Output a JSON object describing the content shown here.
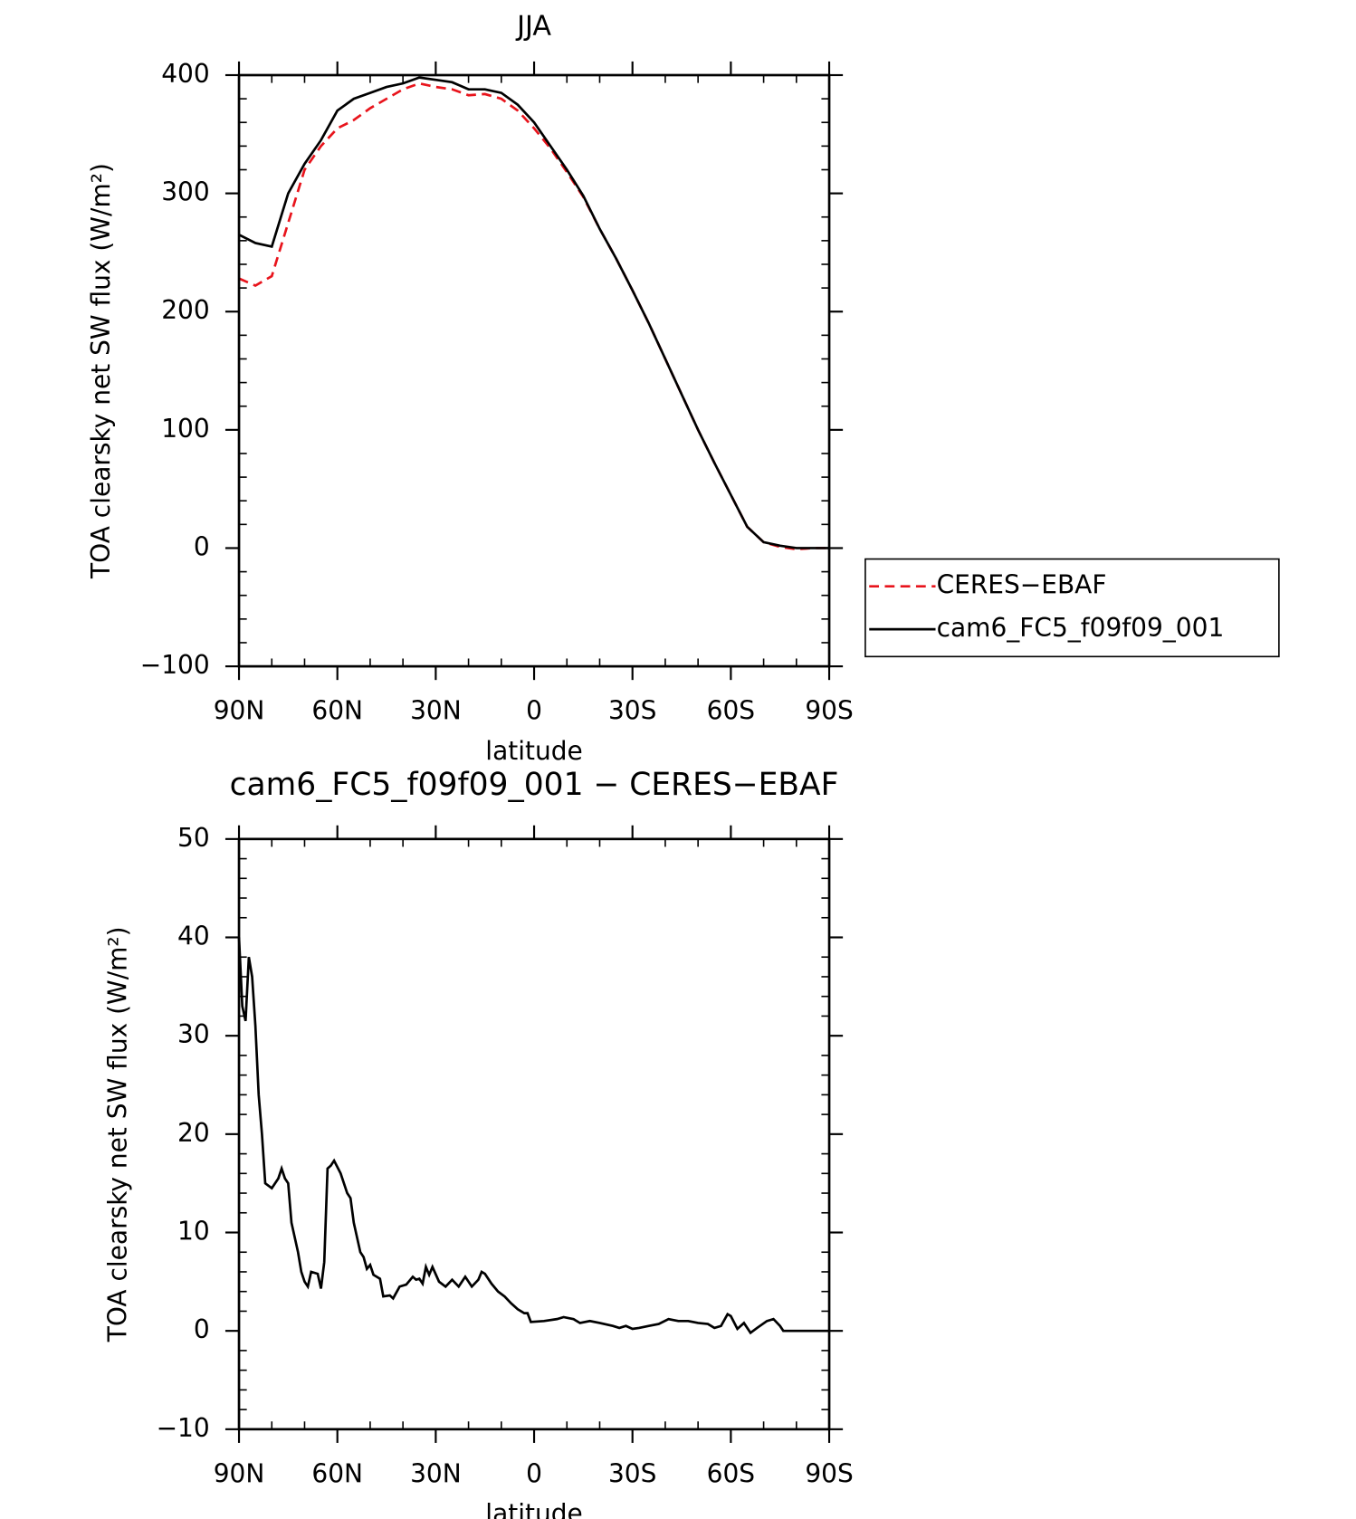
{
  "chart_data": [
    {
      "type": "line",
      "title": "JJA",
      "xlabel": "latitude",
      "ylabel": "TOA clearsky net SW flux (W/m²)",
      "xlim": [
        90,
        -90
      ],
      "xticks": [
        {
          "value": 90,
          "label": "90N"
        },
        {
          "value": 60,
          "label": "60N"
        },
        {
          "value": 30,
          "label": "30N"
        },
        0,
        {
          "value": -30,
          "label": "30S"
        },
        {
          "value": -60,
          "label": "60S"
        },
        {
          "value": -90,
          "label": "90S"
        }
      ],
      "xminor": [
        80,
        70,
        50,
        40,
        20,
        10,
        -10,
        -20,
        -40,
        -50,
        -70,
        -80
      ],
      "ylim": [
        -100,
        400
      ],
      "yticks": [
        {
          "value": -100,
          "label": "−100"
        },
        0,
        100,
        200,
        300,
        400
      ],
      "yminor": [
        -80,
        -60,
        -40,
        -20,
        20,
        40,
        60,
        80,
        120,
        140,
        160,
        180,
        220,
        240,
        260,
        280,
        320,
        340,
        360,
        380
      ],
      "legend": "right",
      "x": [
        90,
        85,
        80,
        75,
        70,
        65,
        60,
        55,
        50,
        45,
        40,
        35,
        30,
        25,
        20,
        15,
        10,
        5,
        0,
        -5,
        -10,
        -15,
        -20,
        -25,
        -30,
        -35,
        -40,
        -45,
        -50,
        -55,
        -60,
        -65,
        -70,
        -75,
        -80,
        -85,
        -90
      ],
      "series": [
        {
          "name": "CERES−EBAF",
          "color": "#e8141c",
          "dash": true,
          "values": [
            228,
            222,
            230,
            275,
            320,
            340,
            355,
            362,
            372,
            380,
            388,
            393,
            390,
            388,
            383,
            384,
            380,
            370,
            355,
            338,
            318,
            297,
            270,
            245,
            218,
            190,
            160,
            130,
            100,
            72,
            45,
            18,
            5,
            1,
            -1,
            0,
            0
          ]
        },
        {
          "name": "cam6_FC5_f09f09_001",
          "color": "#000000",
          "dash": false,
          "values": [
            265,
            258,
            255,
            300,
            325,
            345,
            370,
            380,
            385,
            390,
            393,
            398,
            396,
            394,
            388,
            388,
            385,
            375,
            360,
            340,
            320,
            298,
            270,
            245,
            218,
            190,
            160,
            130,
            100,
            72,
            45,
            18,
            5,
            2,
            0,
            0,
            0
          ]
        }
      ]
    },
    {
      "type": "line",
      "title": "cam6_FC5_f09f09_001 − CERES−EBAF",
      "xlabel": "latitude",
      "ylabel": "TOA clearsky net SW flux (W/m²)",
      "xlim": [
        90,
        -90
      ],
      "xticks": [
        {
          "value": 90,
          "label": "90N"
        },
        {
          "value": 60,
          "label": "60N"
        },
        {
          "value": 30,
          "label": "30N"
        },
        0,
        {
          "value": -30,
          "label": "30S"
        },
        {
          "value": -60,
          "label": "60S"
        },
        {
          "value": -90,
          "label": "90S"
        }
      ],
      "xminor": [
        80,
        70,
        50,
        40,
        20,
        10,
        -10,
        -20,
        -40,
        -50,
        -70,
        -80
      ],
      "ylim": [
        -10,
        50
      ],
      "yticks": [
        {
          "value": -10,
          "label": "−10"
        },
        0,
        10,
        20,
        30,
        40,
        50
      ],
      "yminor": [
        -8,
        -6,
        -4,
        -2,
        2,
        4,
        6,
        8,
        12,
        14,
        16,
        18,
        22,
        24,
        26,
        28,
        32,
        34,
        36,
        38,
        42,
        44,
        46,
        48
      ],
      "x": [
        90,
        89,
        88,
        87,
        86,
        85,
        84,
        83,
        82,
        80,
        78,
        77,
        76,
        75,
        74,
        72,
        71,
        70,
        69,
        68,
        66,
        65,
        64,
        63,
        62,
        61,
        59,
        57,
        56,
        55,
        53,
        52,
        51,
        50,
        49,
        47,
        46,
        44,
        43,
        41,
        39,
        37,
        36,
        35,
        34,
        33,
        32,
        31,
        29,
        27,
        25,
        23,
        21,
        19,
        17,
        16,
        15,
        13,
        11,
        9,
        7,
        5,
        3,
        2,
        1,
        -3,
        -7,
        -9,
        -12,
        -14,
        -17,
        -20,
        -24,
        -26,
        -28,
        -30,
        -32,
        -35,
        -38,
        -41,
        -44,
        -47,
        -50,
        -53,
        -55,
        -57,
        -59,
        -60,
        -62,
        -64,
        -66,
        -68,
        -71,
        -73,
        -75,
        -76,
        -80,
        -90
      ],
      "series": [
        {
          "name": "cam6_FC5_f09f09_001 − CERES−EBAF",
          "color": "#000000",
          "dash": false,
          "values": [
            40,
            33,
            31.5,
            38,
            36,
            31,
            24,
            20,
            15,
            14.5,
            15.5,
            16.5,
            15.5,
            15,
            11,
            8,
            6,
            5,
            4.5,
            6,
            5.8,
            4.3,
            7,
            16.5,
            16.8,
            17.3,
            16,
            14,
            13.5,
            11,
            8,
            7.5,
            6.3,
            6.7,
            5.7,
            5.3,
            3.5,
            3.6,
            3.3,
            4.5,
            4.7,
            5.5,
            5.2,
            5.3,
            4.8,
            6.5,
            5.7,
            6.5,
            5,
            4.5,
            5.2,
            4.5,
            5.5,
            4.5,
            5.2,
            6,
            5.8,
            4.8,
            4,
            3.5,
            2.8,
            2.2,
            1.8,
            1.8,
            0.9,
            1,
            1.2,
            1.4,
            1.2,
            0.8,
            1,
            0.8,
            0.5,
            0.3,
            0.5,
            0.2,
            0.3,
            0.5,
            0.7,
            1.2,
            1,
            1,
            0.8,
            0.7,
            0.3,
            0.5,
            1.7,
            1.5,
            0.2,
            0.8,
            -0.2,
            0.3,
            1,
            1.2,
            0.5,
            0,
            0,
            0
          ]
        }
      ]
    }
  ]
}
